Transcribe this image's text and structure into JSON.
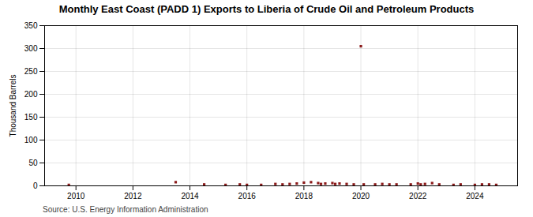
{
  "chart_data": {
    "type": "scatter",
    "title": "Monthly East Coast (PADD 1) Exports to Liberia of Crude Oil and Petroleum Products",
    "ylabel": "Thousand Barrels",
    "source": "Source: U.S. Energy Information Administration",
    "color": "#8b1a1a",
    "marker": "square",
    "grid": true,
    "xlim": [
      2008.9,
      2025.5
    ],
    "ylim": [
      0,
      350
    ],
    "xticks": [
      2010,
      2012,
      2014,
      2016,
      2018,
      2020,
      2022,
      2024
    ],
    "yticks": [
      0,
      50,
      100,
      150,
      200,
      250,
      300,
      350
    ],
    "x": [
      2009.75,
      2013.5,
      2014.5,
      2015.25,
      2015.75,
      2016.0,
      2016.5,
      2017.0,
      2017.25,
      2017.5,
      2017.75,
      2018.0,
      2018.25,
      2018.5,
      2018.6,
      2018.75,
      2019.0,
      2019.1,
      2019.25,
      2019.5,
      2019.75,
      2020.0,
      2020.1,
      2020.5,
      2020.75,
      2021.0,
      2021.25,
      2021.75,
      2022.0,
      2022.1,
      2022.25,
      2022.5,
      2022.75,
      2023.25,
      2023.5,
      2024.0,
      2024.25,
      2024.5,
      2024.75
    ],
    "values": [
      2,
      8,
      3,
      2,
      3,
      2,
      2,
      4,
      3,
      4,
      5,
      7,
      8,
      6,
      4,
      5,
      6,
      4,
      5,
      4,
      3,
      305,
      3,
      3,
      4,
      3,
      3,
      3,
      5,
      3,
      4,
      6,
      3,
      2,
      3,
      2,
      3,
      3,
      2
    ]
  }
}
